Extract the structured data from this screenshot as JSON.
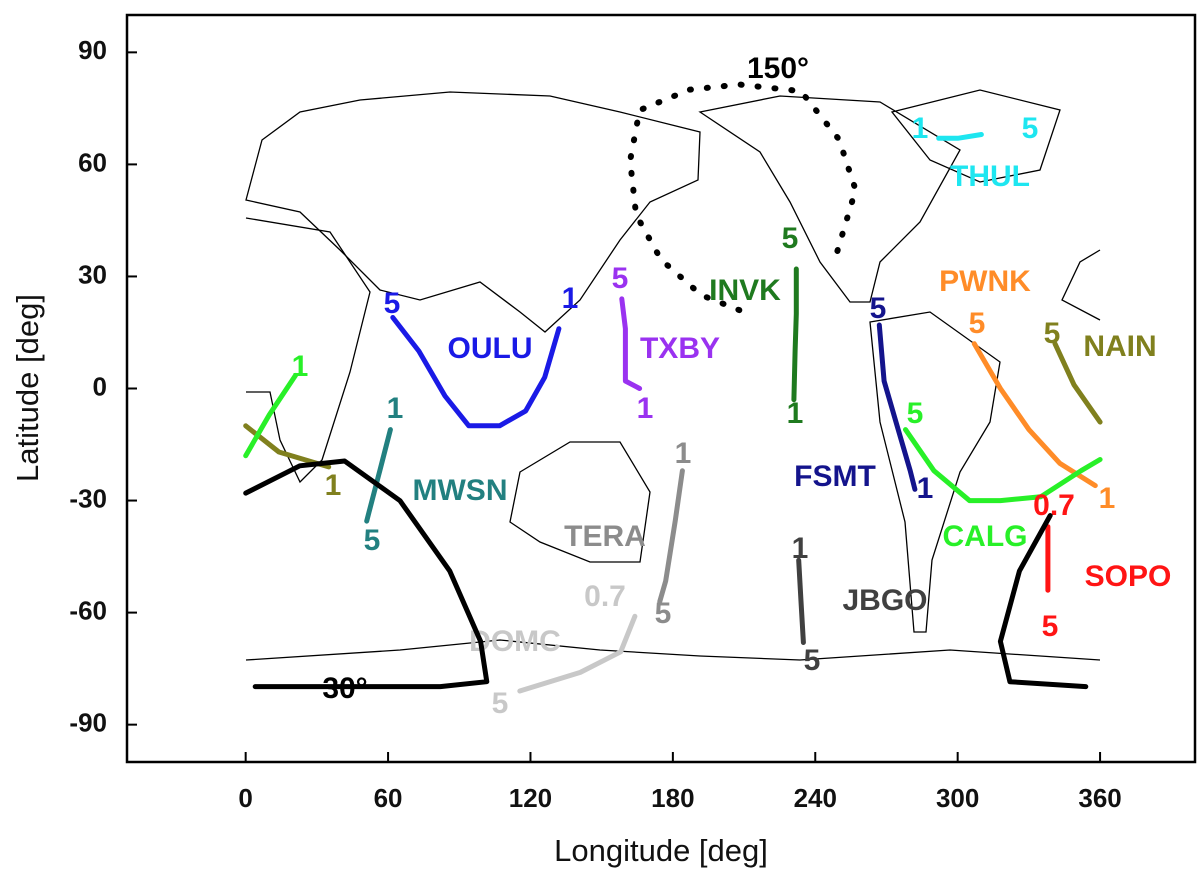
{
  "chart_data": {
    "type": "line",
    "x_label": "Longitude [deg]",
    "y_label": "Latitude [deg]",
    "xlim": [
      -50,
      400
    ],
    "ylim": [
      -100,
      100
    ],
    "xticks": [
      0,
      60,
      120,
      180,
      240,
      300,
      360
    ],
    "yticks": [
      -90,
      -60,
      -30,
      0,
      30,
      60,
      90
    ],
    "series": [
      {
        "name": "OULU",
        "color": "#1a1ae6",
        "start_label": "1",
        "end_label": "5",
        "x": [
          132,
          126,
          118,
          107,
          94,
          84,
          73,
          62
        ],
        "values": [
          16,
          3,
          -6,
          -10,
          -10,
          -2,
          10,
          19
        ]
      },
      {
        "name": "TXBY",
        "color": "#9a32f0",
        "start_label": "1",
        "end_label": "5",
        "x": [
          166,
          160,
          160,
          158.5
        ],
        "values": [
          0,
          2,
          16,
          24
        ]
      },
      {
        "name": "INVK",
        "color": "#1f7a1f",
        "start_label": "1",
        "end_label": "5",
        "x": [
          231,
          231.5,
          232,
          232
        ],
        "values": [
          -3,
          10,
          20,
          32
        ]
      },
      {
        "name": "THUL",
        "color": "#1ee6f0",
        "start_label": "1",
        "end_label": "5",
        "x": [
          292,
          300,
          310
        ],
        "values": [
          67,
          67,
          68
        ]
      },
      {
        "name": "PWNK",
        "color": "#ff8c28",
        "start_label": "1",
        "end_label": "5",
        "x": [
          358,
          343,
          330,
          318,
          307
        ],
        "values": [
          -26,
          -20,
          -11,
          0,
          12
        ]
      },
      {
        "name": "NAIN",
        "color": "#80801e",
        "start_label": "1",
        "end_label": "5",
        "x": [
          35,
          14,
          0,
          null,
          360,
          349,
          341
        ],
        "values": [
          -21,
          -17,
          -10,
          null,
          -9,
          1,
          12
        ]
      },
      {
        "name": "FSMT",
        "color": "#14148c",
        "start_label": "1",
        "end_label": "5",
        "x": [
          282,
          280,
          274,
          269,
          267
        ],
        "values": [
          -27,
          -22,
          -9,
          2,
          17
        ]
      },
      {
        "name": "CALG",
        "color": "#28f028",
        "start_label": "1",
        "end_label": "5",
        "x": [
          21,
          10,
          0,
          null,
          360,
          352,
          335,
          318,
          305,
          290,
          278
        ],
        "values": [
          3.5,
          -7,
          -18,
          null,
          -19,
          -22,
          -29,
          -30,
          -30,
          -22,
          -11
        ]
      },
      {
        "name": "SOPO",
        "color": "#ff1414",
        "start_label": "0.7",
        "end_label": "5",
        "x": [
          338,
          338,
          338
        ],
        "values": [
          -37,
          -45,
          -54
        ]
      },
      {
        "name": "JBGO",
        "color": "#404040",
        "start_label": "1",
        "end_label": "5",
        "x": [
          233,
          234,
          235
        ],
        "values": [
          -46,
          -57,
          -68
        ]
      },
      {
        "name": "TERA",
        "color": "#8c8c8c",
        "start_label": "1",
        "end_label": "5",
        "x": [
          184,
          181,
          177,
          174.5
        ],
        "values": [
          -22,
          -35.5,
          -51.5,
          -57
        ]
      },
      {
        "name": "DOMC",
        "color": "#c8c8c8",
        "start_label": "0.7",
        "end_label": "5",
        "x": [
          164,
          158,
          141,
          115.5
        ],
        "values": [
          -61,
          -70.5,
          -76,
          -81
        ]
      },
      {
        "name": "MWSN",
        "color": "#228080",
        "start_label": "1",
        "end_label": "5",
        "x": [
          61,
          56.5,
          52,
          51
        ],
        "values": [
          -11,
          -22,
          -33,
          -35.5
        ]
      },
      {
        "name": "30°",
        "color": "#000000",
        "x": [
          0,
          22.8,
          41.7,
          65,
          86,
          99,
          101.6,
          82,
          44,
          4,
          null,
          354,
          322,
          318,
          326,
          339
        ],
        "values": [
          -28,
          -20.7,
          -19.4,
          -30,
          -48.9,
          -67.7,
          -78.5,
          -79.8,
          -79.8,
          -79.8,
          null,
          -79.8,
          -78.5,
          -67.7,
          -48.9,
          -34
        ]
      },
      {
        "name": "150°",
        "color": "#000000",
        "dash": true,
        "x": [
          208,
          192,
          175,
          164.5,
          162,
          166,
          187,
          208,
          234,
          250,
          257,
          248
        ],
        "values": [
          21,
          25,
          34.5,
          46.5,
          61,
          74.5,
          80,
          81.4,
          79.6,
          66.7,
          53.2,
          34
        ]
      }
    ]
  }
}
